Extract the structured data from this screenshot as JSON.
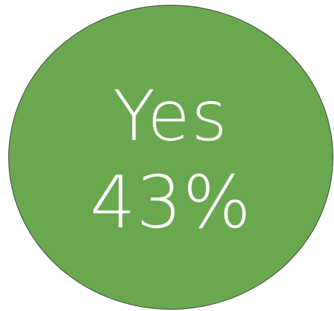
{
  "answer": {
    "label": "Yes",
    "percent_text": "43%",
    "percent_value": 43
  },
  "colors": {
    "fill": "#6aa84f",
    "outline": "#3f3f3f",
    "text": "#ffffff",
    "background": "#ffffff"
  }
}
